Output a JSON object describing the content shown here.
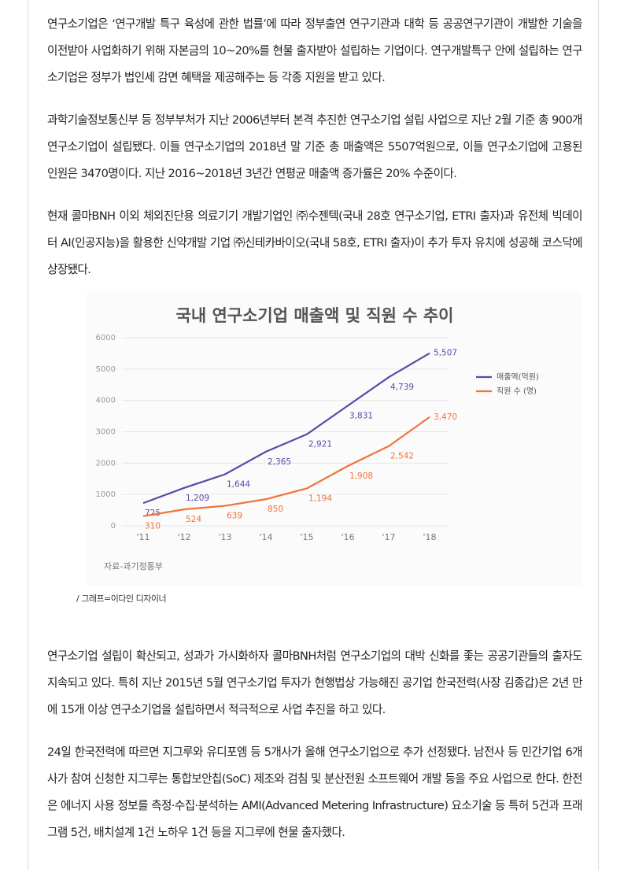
{
  "article": {
    "paragraphs_top": [
      "연구소기업은 ‘연구개발 특구 육성에 관한 법률’에 따라 정부출연 연구기관과 대학 등 공공연구기관이 개발한 기술을 이전받아 사업화하기 위해 자본금의 10~20%를 현물 출자받아 설립하는 기업이다. 연구개발특구 안에 설립하는 연구소기업은 정부가 법인세 감면 혜택을 제공해주는 등 각종 지원을 받고 있다.",
      "과학기술정보통신부 등 정부부처가 지난 2006년부터 본격 추진한 연구소기업 설립 사업으로 지난 2월 기준 총 900개 연구소기업이 설립됐다. 이들 연구소기업의 2018년 말 기준 총 매출액은 5507억원으로, 이들 연구소기업에 고용된 인원은 3470명이다. 지난 2016~2018년 3년간 연평균 매출액 증가률은 20% 수준이다.",
      "현재 콜마BNH 이외 체외진단용 의료기기 개발기업인 ㈜수젠텍(국내 28호 연구소기업, ETRI 출자)과 유전체 빅데이터 AI(인공지능)을 활용한 신약개발 기업 ㈜신테카바이오(국내 58호, ETRI 출자)이 추가 투자 유치에 성공해 코스닥에 상장됐다."
    ],
    "caption": "/ 그래프=이다인 디자이너",
    "paragraphs_bottom": [
      "연구소기업 설립이 확산되고, 성과가 가시화하자 콜마BNH처럼 연구소기업의 대박 신화를 좇는 공공기관들의 출자도 지속되고 있다. 특히 지난 2015년 5월 연구소기업 투자가 현행법상 가능해진 공기업 한국전력(사장 김종갑)은 2년 만에 15개 이상 연구소기업을 설립하면서 적극적으로 사업 추진을 하고 있다.",
      "24일 한국전력에 따르면 지그루와 유디포엠 등 5개사가 올해 연구소기업으로 추가 선정됐다. 남전사 등 민간기업 6개사가 참여 신청한 지그루는 통합보안칩(SoC) 제조와 검침 및 분산전원 소프트웨어 개발 등을 주요 사업으로 한다. 한전은 에너지 사용 정보를 측정·수집·분석하는 AMI(Advanced Metering Infrastructure) 요소기술 등 특허 5건과 프래그램 5건, 배치설계 1건 노하우 1건 등을 지그루에 현물 출자했다."
    ]
  },
  "chart_data": {
    "type": "line",
    "title": "국내 연구소기업 매출액 및 직원 수 추이",
    "categories": [
      "'11",
      "'12",
      "'13",
      "'14",
      "'15",
      "'16",
      "'17",
      "'18"
    ],
    "series": [
      {
        "name": "매출액(억원)",
        "color": "#5a4aa6",
        "values": [
          725,
          1209,
          1644,
          2365,
          2921,
          3831,
          4739,
          5507
        ],
        "value_labels": [
          "725",
          "1,209",
          "1,644",
          "2,365",
          "2,921",
          "3,831",
          "4,739",
          "5,507"
        ]
      },
      {
        "name": "직원 수 (명)",
        "color": "#f0733a",
        "values": [
          310,
          524,
          639,
          850,
          1194,
          1908,
          2542,
          3470
        ],
        "value_labels": [
          "310",
          "524",
          "639",
          "850",
          "1,194",
          "1,908",
          "2,542",
          "3,470"
        ]
      }
    ],
    "ylim": [
      0,
      6000
    ],
    "yticks": [
      0,
      1000,
      2000,
      3000,
      4000,
      5000,
      6000
    ],
    "grid": true,
    "legend": "right",
    "source": "자료-과기정통부"
  }
}
